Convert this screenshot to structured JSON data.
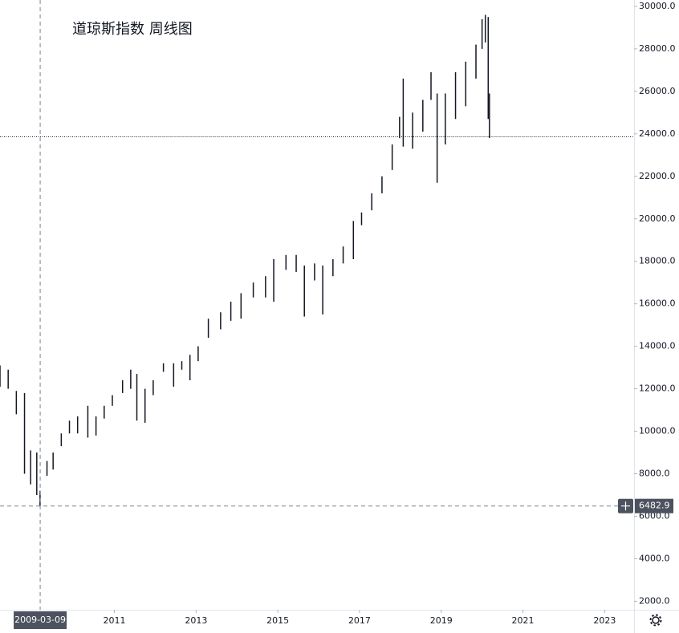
{
  "chart_data": {
    "type": "range-bar",
    "title": "道琼斯指数 周线图",
    "x": [
      2008.2,
      2008.4,
      2008.6,
      2008.8,
      2008.95,
      2009.1,
      2009.18,
      2009.35,
      2009.5,
      2009.7,
      2009.9,
      2010.1,
      2010.35,
      2010.55,
      2010.75,
      2010.95,
      2011.2,
      2011.4,
      2011.55,
      2011.75,
      2011.95,
      2012.2,
      2012.45,
      2012.65,
      2012.85,
      2013.05,
      2013.3,
      2013.6,
      2013.85,
      2014.1,
      2014.4,
      2014.7,
      2014.9,
      2015.2,
      2015.45,
      2015.65,
      2015.9,
      2016.1,
      2016.35,
      2016.6,
      2016.85,
      2017.05,
      2017.3,
      2017.55,
      2017.8,
      2017.98,
      2018.07,
      2018.3,
      2018.55,
      2018.75,
      2018.9,
      2019.1,
      2019.35,
      2019.6,
      2019.85,
      2020.0,
      2020.08,
      2020.15,
      2020.18
    ],
    "series": [
      {
        "name": "high",
        "color": "#131722",
        "values": [
          13100,
          12900,
          11900,
          11800,
          9100,
          9000,
          7200,
          8600,
          9000,
          9900,
          10500,
          10700,
          11200,
          10700,
          11200,
          11700,
          12400,
          12900,
          12700,
          12000,
          12400,
          13200,
          13200,
          13300,
          13600,
          14000,
          15300,
          15600,
          16100,
          16500,
          17000,
          17300,
          18100,
          18300,
          18300,
          17800,
          17900,
          17800,
          18100,
          18700,
          19900,
          20300,
          21200,
          22000,
          23500,
          24800,
          26600,
          25000,
          25600,
          26900,
          25900,
          25900,
          26900,
          27400,
          28200,
          29400,
          29600,
          29500,
          25900
        ]
      },
      {
        "name": "low",
        "color": "#131722",
        "values": [
          12100,
          12000,
          10800,
          8000,
          7500,
          7000,
          6483,
          7900,
          8200,
          9300,
          9900,
          9900,
          9700,
          9800,
          10600,
          11200,
          11800,
          12000,
          10500,
          10400,
          11700,
          12800,
          12100,
          12900,
          12400,
          13300,
          14400,
          14800,
          15200,
          15300,
          16300,
          16300,
          16100,
          17600,
          17500,
          15400,
          17100,
          15500,
          17300,
          17900,
          18100,
          19700,
          20400,
          21200,
          22300,
          23800,
          23400,
          23300,
          24100,
          25600,
          21700,
          23500,
          24700,
          25300,
          26600,
          28000,
          28300,
          24700,
          23800
        ]
      }
    ],
    "xlim": [
      2008.2,
      2023.72
    ],
    "xticks": [
      2011,
      2013,
      2015,
      2017,
      2019,
      2021,
      2023
    ],
    "ylim": [
      1600,
      30300
    ],
    "yticks": [
      {
        "value": 2000,
        "label": "2000.0"
      },
      {
        "value": 4000,
        "label": "4000.0"
      },
      {
        "value": 6000,
        "label": "6000.0"
      },
      {
        "value": 8000,
        "label": "8000.0"
      },
      {
        "value": 10000,
        "label": "10000.0"
      },
      {
        "value": 12000,
        "label": "12000.0"
      },
      {
        "value": 14000,
        "label": "14000.0"
      },
      {
        "value": 16000,
        "label": "16000.0"
      },
      {
        "value": 18000,
        "label": "18000.0"
      },
      {
        "value": 20000,
        "label": "20000.0"
      },
      {
        "value": 22000,
        "label": "22000.0"
      },
      {
        "value": 24000,
        "label": "24000.0"
      },
      {
        "value": 26000,
        "label": "26000.0"
      },
      {
        "value": 28000,
        "label": "28000.0"
      },
      {
        "value": 30000,
        "label": "30000.0"
      }
    ],
    "last_price_line": 23867,
    "crosshair": {
      "date": "2009-03-09",
      "price": 6482.9
    }
  }
}
